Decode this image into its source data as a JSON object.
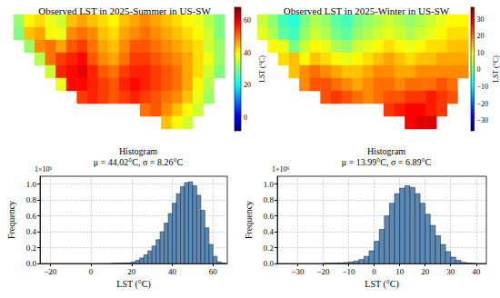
{
  "chart_data": [
    {
      "type": "heatmap",
      "title": "Observed LST in 2025-Summer in US-SW",
      "tick_labels": false,
      "colorbar_label": "LST (°C)",
      "colorbar_range": [
        -8,
        68
      ],
      "colorbar_ticks": [
        0,
        20,
        40,
        60
      ],
      "cells": [
        [
          32,
          40,
          42,
          38,
          36,
          44,
          46,
          44,
          42,
          40,
          44,
          46,
          48,
          46,
          44,
          42,
          40,
          38,
          34,
          30
        ],
        [
          30,
          44,
          46,
          40,
          38,
          48,
          50,
          48,
          44,
          42,
          46,
          48,
          50,
          48,
          46,
          44,
          42,
          40,
          36,
          30
        ],
        [
          null,
          32,
          48,
          50,
          46,
          52,
          54,
          50,
          46,
          44,
          48,
          52,
          52,
          50,
          48,
          46,
          44,
          42,
          36,
          32
        ],
        [
          null,
          null,
          34,
          50,
          54,
          56,
          58,
          52,
          48,
          46,
          50,
          54,
          54,
          52,
          50,
          48,
          46,
          42,
          38,
          32
        ],
        [
          null,
          null,
          null,
          36,
          56,
          58,
          60,
          56,
          52,
          50,
          54,
          56,
          56,
          54,
          52,
          50,
          46,
          42,
          36,
          30
        ],
        [
          null,
          null,
          null,
          null,
          38,
          58,
          58,
          56,
          54,
          52,
          56,
          58,
          56,
          54,
          52,
          50,
          46,
          40,
          34,
          null
        ],
        [
          null,
          null,
          null,
          null,
          null,
          null,
          54,
          56,
          54,
          52,
          54,
          56,
          54,
          52,
          50,
          48,
          44,
          38,
          32,
          null
        ],
        [
          null,
          null,
          null,
          null,
          null,
          null,
          null,
          null,
          null,
          null,
          null,
          null,
          50,
          52,
          48,
          44,
          40,
          36,
          null,
          null
        ],
        [
          null,
          null,
          null,
          null,
          null,
          null,
          null,
          null,
          null,
          null,
          null,
          null,
          null,
          null,
          44,
          40,
          36,
          null,
          null,
          null
        ]
      ]
    },
    {
      "type": "heatmap",
      "title": "Observed LST in 2025-Winter in US-SW",
      "tick_labels": false,
      "colorbar_label": "LST (°C)",
      "colorbar_range": [
        -36,
        37
      ],
      "colorbar_ticks": [
        {
          "value": -30,
          "label": "−30"
        },
        {
          "value": -20,
          "label": "−20"
        },
        {
          "value": -10,
          "label": "−10"
        },
        0,
        10,
        20,
        30
      ],
      "cells": [
        [
          6,
          2,
          -4,
          -6,
          0,
          4,
          2,
          -2,
          -4,
          0,
          2,
          4,
          6,
          4,
          2,
          4,
          6,
          8,
          10,
          10
        ],
        [
          8,
          4,
          -2,
          -4,
          2,
          6,
          4,
          0,
          -2,
          2,
          4,
          6,
          8,
          6,
          4,
          6,
          8,
          10,
          12,
          12
        ],
        [
          null,
          10,
          8,
          0,
          6,
          10,
          8,
          4,
          2,
          6,
          8,
          10,
          12,
          10,
          8,
          10,
          12,
          12,
          14,
          14
        ],
        [
          null,
          null,
          12,
          14,
          10,
          14,
          12,
          10,
          8,
          10,
          12,
          14,
          16,
          14,
          12,
          14,
          14,
          16,
          16,
          16
        ],
        [
          null,
          null,
          null,
          14,
          18,
          20,
          18,
          16,
          14,
          14,
          16,
          18,
          18,
          16,
          16,
          18,
          18,
          18,
          18,
          18
        ],
        [
          null,
          null,
          null,
          null,
          18,
          22,
          22,
          20,
          18,
          16,
          18,
          20,
          20,
          18,
          20,
          20,
          20,
          22,
          20,
          null
        ],
        [
          null,
          null,
          null,
          null,
          null,
          null,
          22,
          24,
          22,
          20,
          18,
          20,
          22,
          22,
          24,
          24,
          26,
          24,
          22,
          null
        ],
        [
          null,
          null,
          null,
          null,
          null,
          null,
          null,
          null,
          null,
          null,
          null,
          null,
          24,
          26,
          28,
          28,
          26,
          24,
          null,
          null
        ],
        [
          null,
          null,
          null,
          null,
          null,
          null,
          null,
          null,
          null,
          null,
          null,
          null,
          null,
          null,
          28,
          30,
          30,
          null,
          null,
          null
        ]
      ]
    },
    {
      "type": "histogram",
      "title": "Histogram",
      "subtitle": "μ = 44.02°C, σ = 8.26°C",
      "xlabel": "LST (°C)",
      "ylabel": "Frequency",
      "y_offset_text": "1×10⁶",
      "color": "#5a8ab8",
      "grid": true,
      "bins": [
        10,
        12,
        14,
        16,
        18,
        20,
        22,
        24,
        26,
        28,
        30,
        32,
        34,
        36,
        38,
        40,
        42,
        44,
        46,
        48,
        50,
        52,
        54,
        56,
        58,
        60,
        62,
        64,
        66
      ],
      "counts": [
        0,
        0.001,
        0.002,
        0.005,
        0.01,
        0.02,
        0.04,
        0.07,
        0.11,
        0.16,
        0.22,
        0.3,
        0.4,
        0.51,
        0.63,
        0.76,
        0.88,
        0.97,
        1.02,
        1.03,
        0.98,
        0.86,
        0.67,
        0.45,
        0.24,
        0.09,
        0.02,
        0.003
      ],
      "xlim": [
        -25,
        67
      ],
      "xticks": [
        {
          "value": -20,
          "label": "−20"
        },
        0,
        20,
        40,
        60
      ],
      "ylim": [
        0,
        1.1
      ],
      "yticks": [
        {
          "value": 0,
          "label": "0.0"
        },
        0.2,
        0.4,
        0.6,
        0.8,
        {
          "value": 1,
          "label": "1.0"
        }
      ]
    },
    {
      "type": "histogram",
      "title": "Histogram",
      "subtitle": "μ = 13.99°C, σ = 6.89°C",
      "xlabel": "LST (°C)",
      "ylabel": "Frequency",
      "y_offset_text": "1×10⁶",
      "color": "#5a8ab8",
      "grid": true,
      "bins": [
        -20,
        -18,
        -16,
        -14,
        -12,
        -10,
        -8,
        -6,
        -4,
        -2,
        0,
        2,
        4,
        6,
        8,
        10,
        12,
        14,
        16,
        18,
        20,
        22,
        24,
        26,
        28,
        30,
        32,
        34,
        36,
        38,
        40
      ],
      "counts": [
        0.001,
        0.002,
        0.004,
        0.007,
        0.012,
        0.02,
        0.03,
        0.05,
        0.09,
        0.16,
        0.28,
        0.43,
        0.6,
        0.76,
        0.88,
        0.95,
        0.98,
        0.96,
        0.88,
        0.76,
        0.62,
        0.48,
        0.35,
        0.24,
        0.15,
        0.08,
        0.04,
        0.015,
        0.005,
        0.001
      ],
      "xlim": [
        -38,
        44
      ],
      "xticks": [
        {
          "value": -30,
          "label": "−30"
        },
        {
          "value": -20,
          "label": "−20"
        },
        {
          "value": -10,
          "label": "−10"
        },
        0,
        10,
        20,
        30,
        40
      ],
      "ylim": [
        0,
        1.1
      ],
      "yticks": [
        {
          "value": 0,
          "label": "0.0"
        },
        0.2,
        0.4,
        0.6,
        0.8,
        {
          "value": 1,
          "label": "1.0"
        }
      ]
    }
  ]
}
